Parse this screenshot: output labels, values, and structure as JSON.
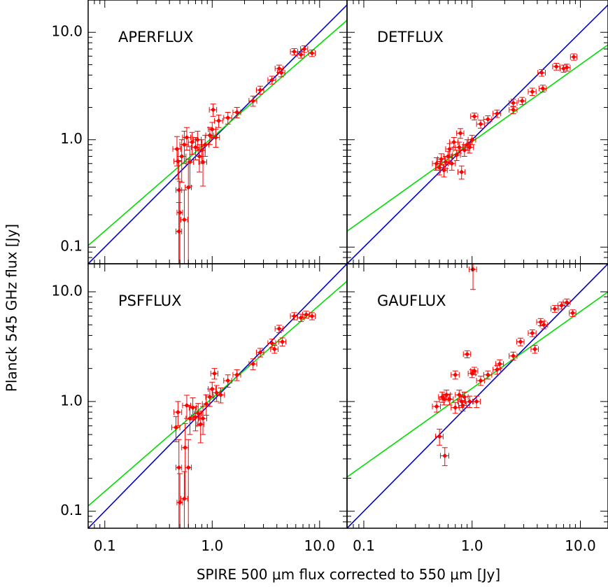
{
  "chart_data": {
    "type": "scatter",
    "xlabel": "SPIRE 500 μm flux corrected to 550 μm [Jy]",
    "ylabel": "Planck 545 GHz flux [Jy]",
    "x_scale": "log",
    "y_scale": "log",
    "xlim": [
      0.07,
      18
    ],
    "ylim_top_row": [
      0.07,
      20
    ],
    "ylim_bottom_row": [
      0.07,
      18
    ],
    "grid": false,
    "colors": {
      "points": "#ff0000",
      "unity_line": "#0000cc",
      "fit_line": "#00dd00",
      "axes": "#000000"
    },
    "tick_labels_x": [
      "0.1",
      "1.0",
      "10.0"
    ],
    "tick_labels_y": [
      "0.1",
      "1.0",
      "10.0"
    ],
    "panels": [
      {
        "title": "APERFLUX",
        "position": "top-left",
        "unity_line": {
          "slope": 1.0,
          "intercept": 0.0
        },
        "fit_line": {
          "log_slope": 0.87,
          "log_intercept": 0.02
        },
        "points": [
          {
            "x": 0.47,
            "y": 0.82,
            "xerr": 0.04,
            "yerr": 0.25
          },
          {
            "x": 0.48,
            "y": 0.63,
            "xerr": 0.04,
            "yerr": 0.2
          },
          {
            "x": 0.49,
            "y": 0.34,
            "xerr": 0.03,
            "yerr": 0.3
          },
          {
            "x": 0.5,
            "y": 0.21,
            "xerr": 0.03,
            "yerr": 0.2
          },
          {
            "x": 0.49,
            "y": 0.14,
            "xerr": 0.03,
            "yerr": 0.12
          },
          {
            "x": 0.55,
            "y": 0.18,
            "xerr": 0.04,
            "yerr": 0.16
          },
          {
            "x": 0.52,
            "y": 0.7,
            "xerr": 0.05,
            "yerr": 0.3
          },
          {
            "x": 0.55,
            "y": 0.9,
            "xerr": 0.05,
            "yerr": 0.3
          },
          {
            "x": 0.58,
            "y": 1.05,
            "xerr": 0.05,
            "yerr": 0.25
          },
          {
            "x": 0.6,
            "y": 0.36,
            "xerr": 0.04,
            "yerr": 0.3
          },
          {
            "x": 0.62,
            "y": 0.62,
            "xerr": 0.05,
            "yerr": 0.25
          },
          {
            "x": 0.65,
            "y": 0.95,
            "xerr": 0.05,
            "yerr": 0.22
          },
          {
            "x": 0.7,
            "y": 0.85,
            "xerr": 0.06,
            "yerr": 0.2
          },
          {
            "x": 0.73,
            "y": 1.0,
            "xerr": 0.06,
            "yerr": 0.2
          },
          {
            "x": 0.76,
            "y": 0.7,
            "xerr": 0.06,
            "yerr": 0.2
          },
          {
            "x": 0.8,
            "y": 0.8,
            "xerr": 0.06,
            "yerr": 0.2
          },
          {
            "x": 0.82,
            "y": 0.62,
            "xerr": 0.07,
            "yerr": 0.25
          },
          {
            "x": 0.86,
            "y": 0.9,
            "xerr": 0.07,
            "yerr": 0.2
          },
          {
            "x": 0.95,
            "y": 1.1,
            "xerr": 0.08,
            "yerr": 0.2
          },
          {
            "x": 1.0,
            "y": 1.25,
            "xerr": 0.08,
            "yerr": 0.2
          },
          {
            "x": 1.02,
            "y": 1.9,
            "xerr": 0.08,
            "yerr": 0.25
          },
          {
            "x": 1.08,
            "y": 1.05,
            "xerr": 0.09,
            "yerr": 0.2
          },
          {
            "x": 1.15,
            "y": 1.5,
            "xerr": 0.1,
            "yerr": 0.2
          },
          {
            "x": 1.4,
            "y": 1.6,
            "xerr": 0.12,
            "yerr": 0.2
          },
          {
            "x": 1.7,
            "y": 1.8,
            "xerr": 0.14,
            "yerr": 0.2
          },
          {
            "x": 2.4,
            "y": 2.3,
            "xerr": 0.2,
            "yerr": 0.25
          },
          {
            "x": 2.8,
            "y": 2.9,
            "xerr": 0.22,
            "yerr": 0.25
          },
          {
            "x": 3.6,
            "y": 3.6,
            "xerr": 0.3,
            "yerr": 0.3
          },
          {
            "x": 4.2,
            "y": 4.6,
            "xerr": 0.35,
            "yerr": 0.35
          },
          {
            "x": 4.4,
            "y": 4.2,
            "xerr": 0.35,
            "yerr": 0.35
          },
          {
            "x": 5.8,
            "y": 6.6,
            "xerr": 0.45,
            "yerr": 0.45
          },
          {
            "x": 6.7,
            "y": 6.2,
            "xerr": 0.5,
            "yerr": 0.45
          },
          {
            "x": 7.2,
            "y": 7.0,
            "xerr": 0.55,
            "yerr": 0.5
          },
          {
            "x": 8.5,
            "y": 6.4,
            "xerr": 0.6,
            "yerr": 0.45
          }
        ]
      },
      {
        "title": "DETFLUX",
        "position": "top-right",
        "unity_line": {
          "slope": 1.0,
          "intercept": 0.0
        },
        "fit_line": {
          "log_slope": 0.72,
          "log_intercept": -0.02
        },
        "points": [
          {
            "x": 0.47,
            "y": 0.6,
            "xerr": 0.04,
            "yerr": 0.08
          },
          {
            "x": 0.5,
            "y": 0.55,
            "xerr": 0.04,
            "yerr": 0.08
          },
          {
            "x": 0.52,
            "y": 0.66,
            "xerr": 0.04,
            "yerr": 0.08
          },
          {
            "x": 0.55,
            "y": 0.52,
            "xerr": 0.04,
            "yerr": 0.07
          },
          {
            "x": 0.57,
            "y": 0.62,
            "xerr": 0.05,
            "yerr": 0.08
          },
          {
            "x": 0.6,
            "y": 0.7,
            "xerr": 0.05,
            "yerr": 0.08
          },
          {
            "x": 0.62,
            "y": 0.82,
            "xerr": 0.05,
            "yerr": 0.1
          },
          {
            "x": 0.65,
            "y": 0.6,
            "xerr": 0.05,
            "yerr": 0.08
          },
          {
            "x": 0.68,
            "y": 0.95,
            "xerr": 0.06,
            "yerr": 0.1
          },
          {
            "x": 0.72,
            "y": 0.72,
            "xerr": 0.06,
            "yerr": 0.08
          },
          {
            "x": 0.76,
            "y": 0.85,
            "xerr": 0.06,
            "yerr": 0.1
          },
          {
            "x": 0.78,
            "y": 1.15,
            "xerr": 0.06,
            "yerr": 0.12
          },
          {
            "x": 0.8,
            "y": 0.5,
            "xerr": 0.06,
            "yerr": 0.07
          },
          {
            "x": 0.85,
            "y": 0.8,
            "xerr": 0.07,
            "yerr": 0.1
          },
          {
            "x": 0.9,
            "y": 0.9,
            "xerr": 0.07,
            "yerr": 0.1
          },
          {
            "x": 0.95,
            "y": 0.85,
            "xerr": 0.08,
            "yerr": 0.1
          },
          {
            "x": 1.0,
            "y": 1.0,
            "xerr": 0.08,
            "yerr": 0.1
          },
          {
            "x": 1.05,
            "y": 1.65,
            "xerr": 0.08,
            "yerr": 0.12
          },
          {
            "x": 1.2,
            "y": 1.4,
            "xerr": 0.1,
            "yerr": 0.12
          },
          {
            "x": 1.4,
            "y": 1.55,
            "xerr": 0.12,
            "yerr": 0.12
          },
          {
            "x": 1.7,
            "y": 1.75,
            "xerr": 0.14,
            "yerr": 0.14
          },
          {
            "x": 2.4,
            "y": 2.2,
            "xerr": 0.2,
            "yerr": 0.18
          },
          {
            "x": 2.4,
            "y": 1.9,
            "xerr": 0.2,
            "yerr": 0.15
          },
          {
            "x": 2.9,
            "y": 2.3,
            "xerr": 0.22,
            "yerr": 0.18
          },
          {
            "x": 3.6,
            "y": 2.8,
            "xerr": 0.3,
            "yerr": 0.22
          },
          {
            "x": 4.5,
            "y": 3.0,
            "xerr": 0.35,
            "yerr": 0.22
          },
          {
            "x": 4.4,
            "y": 4.2,
            "xerr": 0.35,
            "yerr": 0.3
          },
          {
            "x": 6.0,
            "y": 4.8,
            "xerr": 0.45,
            "yerr": 0.35
          },
          {
            "x": 7.0,
            "y": 4.6,
            "xerr": 0.5,
            "yerr": 0.35
          },
          {
            "x": 7.5,
            "y": 4.7,
            "xerr": 0.55,
            "yerr": 0.35
          },
          {
            "x": 8.7,
            "y": 5.9,
            "xerr": 0.6,
            "yerr": 0.4
          }
        ]
      },
      {
        "title": "PSFFLUX",
        "position": "bottom-left",
        "unity_line": {
          "slope": 1.0,
          "intercept": 0.0
        },
        "fit_line": {
          "log_slope": 0.85,
          "log_intercept": 0.03
        },
        "points": [
          {
            "x": 0.46,
            "y": 0.58,
            "xerr": 0.04,
            "yerr": 0.15
          },
          {
            "x": 0.48,
            "y": 0.8,
            "xerr": 0.04,
            "yerr": 0.2
          },
          {
            "x": 0.49,
            "y": 0.25,
            "xerr": 0.03,
            "yerr": 0.2
          },
          {
            "x": 0.5,
            "y": 0.12,
            "xerr": 0.03,
            "yerr": 0.1
          },
          {
            "x": 0.55,
            "y": 0.13,
            "xerr": 0.04,
            "yerr": 0.1
          },
          {
            "x": 0.56,
            "y": 0.38,
            "xerr": 0.04,
            "yerr": 0.25
          },
          {
            "x": 0.58,
            "y": 0.92,
            "xerr": 0.05,
            "yerr": 0.22
          },
          {
            "x": 0.6,
            "y": 0.25,
            "xerr": 0.04,
            "yerr": 0.2
          },
          {
            "x": 0.62,
            "y": 0.7,
            "xerr": 0.05,
            "yerr": 0.2
          },
          {
            "x": 0.66,
            "y": 0.88,
            "xerr": 0.05,
            "yerr": 0.2
          },
          {
            "x": 0.7,
            "y": 0.72,
            "xerr": 0.06,
            "yerr": 0.18
          },
          {
            "x": 0.74,
            "y": 0.78,
            "xerr": 0.06,
            "yerr": 0.18
          },
          {
            "x": 0.78,
            "y": 0.62,
            "xerr": 0.06,
            "yerr": 0.2
          },
          {
            "x": 0.82,
            "y": 0.7,
            "xerr": 0.07,
            "yerr": 0.2
          },
          {
            "x": 0.88,
            "y": 0.95,
            "xerr": 0.07,
            "yerr": 0.2
          },
          {
            "x": 0.95,
            "y": 1.1,
            "xerr": 0.08,
            "yerr": 0.2
          },
          {
            "x": 1.0,
            "y": 1.3,
            "xerr": 0.08,
            "yerr": 0.2
          },
          {
            "x": 1.05,
            "y": 1.8,
            "xerr": 0.08,
            "yerr": 0.2
          },
          {
            "x": 1.1,
            "y": 1.2,
            "xerr": 0.09,
            "yerr": 0.2
          },
          {
            "x": 1.2,
            "y": 1.15,
            "xerr": 0.1,
            "yerr": 0.18
          },
          {
            "x": 1.4,
            "y": 1.55,
            "xerr": 0.12,
            "yerr": 0.2
          },
          {
            "x": 1.7,
            "y": 1.75,
            "xerr": 0.14,
            "yerr": 0.2
          },
          {
            "x": 2.4,
            "y": 2.2,
            "xerr": 0.2,
            "yerr": 0.25
          },
          {
            "x": 2.8,
            "y": 2.8,
            "xerr": 0.22,
            "yerr": 0.25
          },
          {
            "x": 3.6,
            "y": 3.4,
            "xerr": 0.3,
            "yerr": 0.3
          },
          {
            "x": 3.8,
            "y": 3.0,
            "xerr": 0.3,
            "yerr": 0.25
          },
          {
            "x": 4.2,
            "y": 4.6,
            "xerr": 0.35,
            "yerr": 0.35
          },
          {
            "x": 4.5,
            "y": 3.5,
            "xerr": 0.35,
            "yerr": 0.3
          },
          {
            "x": 5.8,
            "y": 6.0,
            "xerr": 0.45,
            "yerr": 0.45
          },
          {
            "x": 6.7,
            "y": 5.8,
            "xerr": 0.5,
            "yerr": 0.45
          },
          {
            "x": 7.5,
            "y": 6.2,
            "xerr": 0.55,
            "yerr": 0.45
          },
          {
            "x": 8.5,
            "y": 6.0,
            "xerr": 0.6,
            "yerr": 0.45
          }
        ]
      },
      {
        "title": "GAUFLUX",
        "position": "bottom-right",
        "unity_line": {
          "slope": 1.0,
          "intercept": 0.0
        },
        "fit_line": {
          "log_slope": 0.7,
          "log_intercept": 0.12
        },
        "points": [
          {
            "x": 0.47,
            "y": 0.9,
            "xerr": 0.04,
            "yerr": 0.1
          },
          {
            "x": 0.5,
            "y": 0.48,
            "xerr": 0.04,
            "yerr": 0.08
          },
          {
            "x": 0.53,
            "y": 1.1,
            "xerr": 0.04,
            "yerr": 0.12
          },
          {
            "x": 0.55,
            "y": 1.05,
            "xerr": 0.05,
            "yerr": 0.12
          },
          {
            "x": 0.56,
            "y": 0.32,
            "xerr": 0.05,
            "yerr": 0.06
          },
          {
            "x": 0.58,
            "y": 1.15,
            "xerr": 0.05,
            "yerr": 0.12
          },
          {
            "x": 0.62,
            "y": 1.05,
            "xerr": 0.05,
            "yerr": 0.12
          },
          {
            "x": 0.7,
            "y": 0.88,
            "xerr": 0.06,
            "yerr": 0.1
          },
          {
            "x": 0.7,
            "y": 1.75,
            "xerr": 0.06,
            "yerr": 0.15
          },
          {
            "x": 0.76,
            "y": 1.15,
            "xerr": 0.06,
            "yerr": 0.12
          },
          {
            "x": 0.8,
            "y": 1.0,
            "xerr": 0.06,
            "yerr": 0.12
          },
          {
            "x": 0.82,
            "y": 0.92,
            "xerr": 0.07,
            "yerr": 0.1
          },
          {
            "x": 0.85,
            "y": 1.1,
            "xerr": 0.07,
            "yerr": 0.12
          },
          {
            "x": 0.9,
            "y": 2.7,
            "xerr": 0.07,
            "yerr": 0.2
          },
          {
            "x": 0.95,
            "y": 1.0,
            "xerr": 0.08,
            "yerr": 0.12
          },
          {
            "x": 1.0,
            "y": 1.8,
            "xerr": 0.08,
            "yerr": 0.15
          },
          {
            "x": 1.05,
            "y": 1.9,
            "xerr": 0.08,
            "yerr": 0.15
          },
          {
            "x": 1.02,
            "y": 16.0,
            "xerr": 0.08,
            "yerr": 5.5
          },
          {
            "x": 1.1,
            "y": 1.0,
            "xerr": 0.09,
            "yerr": 0.12
          },
          {
            "x": 1.2,
            "y": 1.55,
            "xerr": 0.1,
            "yerr": 0.15
          },
          {
            "x": 1.4,
            "y": 1.75,
            "xerr": 0.12,
            "yerr": 0.15
          },
          {
            "x": 1.7,
            "y": 1.95,
            "xerr": 0.14,
            "yerr": 0.18
          },
          {
            "x": 1.8,
            "y": 2.2,
            "xerr": 0.15,
            "yerr": 0.2
          },
          {
            "x": 2.4,
            "y": 2.6,
            "xerr": 0.2,
            "yerr": 0.22
          },
          {
            "x": 2.8,
            "y": 3.5,
            "xerr": 0.22,
            "yerr": 0.28
          },
          {
            "x": 3.6,
            "y": 4.2,
            "xerr": 0.3,
            "yerr": 0.3
          },
          {
            "x": 3.8,
            "y": 3.0,
            "xerr": 0.3,
            "yerr": 0.25
          },
          {
            "x": 4.3,
            "y": 5.3,
            "xerr": 0.35,
            "yerr": 0.4
          },
          {
            "x": 4.6,
            "y": 5.0,
            "xerr": 0.35,
            "yerr": 0.4
          },
          {
            "x": 5.8,
            "y": 7.0,
            "xerr": 0.45,
            "yerr": 0.5
          },
          {
            "x": 6.7,
            "y": 7.5,
            "xerr": 0.5,
            "yerr": 0.55
          },
          {
            "x": 7.5,
            "y": 8.0,
            "xerr": 0.55,
            "yerr": 0.6
          },
          {
            "x": 8.5,
            "y": 6.4,
            "xerr": 0.6,
            "yerr": 0.45
          }
        ]
      }
    ]
  }
}
